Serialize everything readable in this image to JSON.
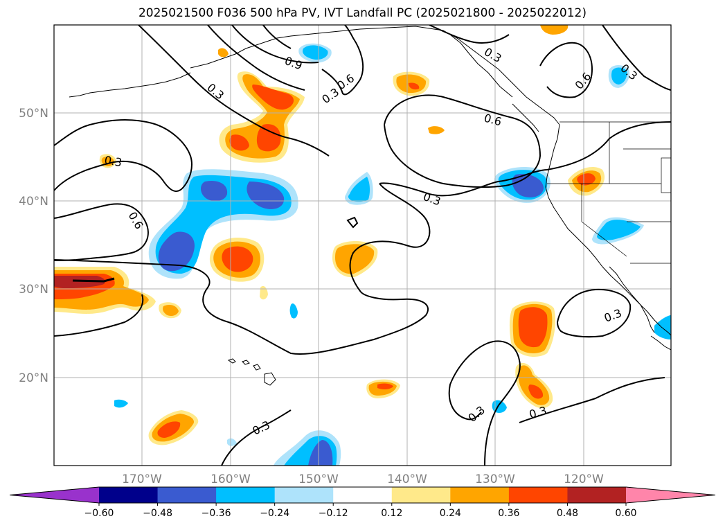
{
  "title": "2025021500 F036 500 hPa PV, IVT Landfall PC (2025021800 - 2025022012)",
  "map": {
    "lat_labels": [
      "50°N",
      "40°N",
      "30°N",
      "20°N"
    ],
    "lon_labels": [
      "170°W",
      "160°W",
      "150°W",
      "140°W",
      "130°W",
      "120°W"
    ],
    "contour_labels": [
      "0.3",
      "0.9",
      "0.3",
      "0.6",
      "0.6",
      "0.3",
      "0.6",
      "0.3",
      "0.3",
      "0.6",
      "0.3",
      "0.3",
      "0.3",
      "0.3",
      "0.3"
    ],
    "grid": true
  },
  "colorbar": {
    "ticks": [
      "−0.60",
      "−0.48",
      "−0.36",
      "−0.24",
      "−0.12",
      "0.12",
      "0.24",
      "0.36",
      "0.48",
      "0.60"
    ],
    "colors": [
      "#9932cc",
      "#00008b",
      "#3a5bd0",
      "#00bfff",
      "#aee3fb",
      "#ffffff",
      "#ffe98a",
      "#ffa500",
      "#ff4500",
      "#b22222",
      "#ff85aa"
    ]
  },
  "colors": {
    "neg_light": "#aee3fb",
    "neg_mid": "#00bfff",
    "neg_dark": "#3a5bd0",
    "pos_light": "#ffe98a",
    "pos_mid": "#ffa500",
    "pos_dark": "#ff4500",
    "pos_darker": "#b22222"
  }
}
